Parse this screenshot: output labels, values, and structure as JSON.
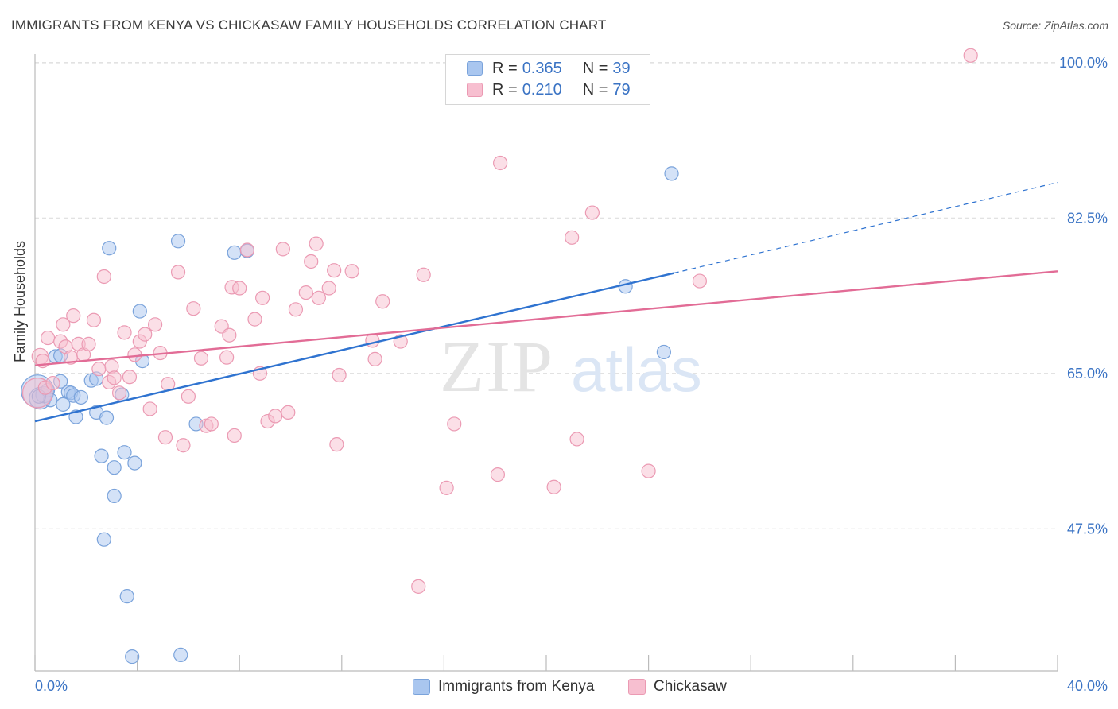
{
  "title": "IMMIGRANTS FROM KENYA VS CHICKASAW FAMILY HOUSEHOLDS CORRELATION CHART",
  "source": "Source: ZipAtlas.com",
  "watermark": {
    "zip": "ZIP",
    "atlas": "atlas"
  },
  "legend": {
    "kenya": {
      "r_label": "R = ",
      "r_value": "0.365",
      "n_label": "N = ",
      "n_value": "39"
    },
    "chickasaw": {
      "r_label": "R = ",
      "r_value": "0.210",
      "n_label": "N = ",
      "n_value": "79"
    }
  },
  "bottom_legend": {
    "kenya": "Immigrants from Kenya",
    "chickasaw": "Chickasaw"
  },
  "colors": {
    "kenya_fill": "#a9c6ef",
    "kenya_stroke": "#7aa3db",
    "kenya_line": "#2f73d0",
    "chickasaw_fill": "#f7bfd0",
    "chickasaw_stroke": "#eb9ab3",
    "chickasaw_line": "#e26c96",
    "axis_text": "#3a73c4",
    "grid": "#d9d9d9"
  },
  "chart_data": {
    "type": "scatter",
    "title": "IMMIGRANTS FROM KENYA VS CHICKASAW FAMILY HOUSEHOLDS CORRELATION CHART",
    "xlabel": "",
    "ylabel": "Family Households",
    "xlim": [
      0,
      40
    ],
    "ylim": [
      31.5,
      101.5
    ],
    "x_tick_labels": [
      "0.0%",
      "40.0%"
    ],
    "y_ticks": [
      47.5,
      65.0,
      82.5,
      100.0
    ],
    "y_tick_labels": [
      "47.5%",
      "65.0%",
      "82.5%",
      "100.0%"
    ],
    "grid": true,
    "series": [
      {
        "name": "Immigrants from Kenya",
        "r": 0.365,
        "n": 39,
        "trend": {
          "x0": 0,
          "y0": 59.6,
          "x1": 25.0,
          "y1": 76.3,
          "dashed_to_x": 40.0,
          "dashed_to_y": 86.5
        },
        "points": [
          [
            0.1,
            63.0,
            2.4
          ],
          [
            0.2,
            62.2,
            1.6
          ],
          [
            0.35,
            62.6,
            1.2
          ],
          [
            0.5,
            63.1,
            1.0
          ],
          [
            0.6,
            62.0,
            1.0
          ],
          [
            0.8,
            66.9,
            1.0
          ],
          [
            1.0,
            67.0,
            1.0
          ],
          [
            1.0,
            64.1,
            1.0
          ],
          [
            1.1,
            61.5,
            1.0
          ],
          [
            1.3,
            62.9,
            1.0
          ],
          [
            1.4,
            62.8,
            1.0
          ],
          [
            1.5,
            62.5,
            1.0
          ],
          [
            1.6,
            60.1,
            1.0
          ],
          [
            1.8,
            62.3,
            1.0
          ],
          [
            2.2,
            64.2,
            1.0
          ],
          [
            2.4,
            64.4,
            1.0
          ],
          [
            2.4,
            60.6,
            1.0
          ],
          [
            2.6,
            55.7,
            1.0
          ],
          [
            2.8,
            60.0,
            1.0
          ],
          [
            2.9,
            79.1,
            1.0
          ],
          [
            3.1,
            51.2,
            1.0
          ],
          [
            3.1,
            54.4,
            1.0
          ],
          [
            3.4,
            62.6,
            1.0
          ],
          [
            3.5,
            56.1,
            1.0
          ],
          [
            3.6,
            39.9,
            1.0
          ],
          [
            3.8,
            33.1,
            1.0
          ],
          [
            3.9,
            54.9,
            1.0
          ],
          [
            4.1,
            72.0,
            1.0
          ],
          [
            4.2,
            66.4,
            1.0
          ],
          [
            2.7,
            46.3,
            1.0
          ],
          [
            5.6,
            79.9,
            1.0
          ],
          [
            6.3,
            59.3,
            1.0
          ],
          [
            7.8,
            78.6,
            1.0
          ],
          [
            8.3,
            78.8,
            1.0
          ],
          [
            5.7,
            33.3,
            1.0
          ],
          [
            23.1,
            74.8,
            1.0
          ],
          [
            24.6,
            67.4,
            1.0
          ],
          [
            24.9,
            87.5,
            1.0
          ],
          [
            0.15,
            62.4,
            1.0
          ]
        ]
      },
      {
        "name": "Chickasaw",
        "r": 0.21,
        "n": 79,
        "trend": {
          "x0": 0,
          "y0": 65.9,
          "x1": 40.0,
          "y1": 76.5
        },
        "points": [
          [
            0.1,
            62.8,
            2.2
          ],
          [
            0.2,
            66.9,
            1.2
          ],
          [
            0.4,
            63.4,
            1.0
          ],
          [
            0.5,
            69.0,
            1.0
          ],
          [
            0.7,
            63.9,
            1.0
          ],
          [
            1.0,
            68.6,
            1.0
          ],
          [
            1.2,
            68.0,
            1.0
          ],
          [
            1.4,
            66.8,
            1.0
          ],
          [
            1.5,
            71.5,
            1.0
          ],
          [
            1.7,
            68.3,
            1.0
          ],
          [
            1.9,
            67.1,
            1.0
          ],
          [
            2.1,
            68.3,
            1.0
          ],
          [
            2.3,
            71.0,
            1.0
          ],
          [
            2.5,
            65.5,
            1.0
          ],
          [
            2.7,
            75.9,
            1.0
          ],
          [
            2.9,
            64.0,
            1.0
          ],
          [
            3.0,
            65.8,
            1.0
          ],
          [
            3.1,
            64.5,
            1.0
          ],
          [
            3.3,
            62.8,
            1.0
          ],
          [
            3.5,
            69.6,
            1.0
          ],
          [
            3.7,
            64.6,
            1.0
          ],
          [
            3.9,
            67.1,
            1.0
          ],
          [
            4.1,
            68.6,
            1.0
          ],
          [
            4.3,
            69.4,
            1.0
          ],
          [
            4.5,
            61.0,
            1.0
          ],
          [
            4.7,
            70.5,
            1.0
          ],
          [
            4.9,
            67.3,
            1.0
          ],
          [
            5.1,
            57.8,
            1.0
          ],
          [
            5.2,
            63.8,
            1.0
          ],
          [
            5.6,
            76.4,
            1.0
          ],
          [
            5.8,
            56.9,
            1.0
          ],
          [
            6.0,
            62.4,
            1.0
          ],
          [
            6.2,
            72.3,
            1.0
          ],
          [
            6.5,
            66.7,
            1.0
          ],
          [
            6.7,
            59.1,
            1.0
          ],
          [
            6.9,
            59.3,
            1.0
          ],
          [
            7.3,
            70.3,
            1.0
          ],
          [
            7.5,
            66.8,
            1.0
          ],
          [
            7.6,
            69.3,
            1.0
          ],
          [
            7.8,
            58.0,
            1.0
          ],
          [
            7.7,
            74.7,
            1.0
          ],
          [
            8.0,
            74.6,
            1.0
          ],
          [
            8.3,
            78.9,
            1.0
          ],
          [
            8.6,
            71.1,
            1.0
          ],
          [
            8.8,
            65.0,
            1.0
          ],
          [
            8.9,
            73.5,
            1.0
          ],
          [
            9.1,
            59.6,
            1.0
          ],
          [
            9.4,
            60.2,
            1.0
          ],
          [
            9.7,
            79.0,
            1.0
          ],
          [
            9.9,
            60.6,
            1.0
          ],
          [
            10.2,
            72.2,
            1.0
          ],
          [
            10.6,
            74.1,
            1.0
          ],
          [
            10.8,
            77.6,
            1.0
          ],
          [
            11.0,
            79.6,
            1.0
          ],
          [
            11.1,
            73.5,
            1.0
          ],
          [
            11.5,
            74.6,
            1.0
          ],
          [
            11.7,
            76.6,
            1.0
          ],
          [
            11.8,
            57.0,
            1.0
          ],
          [
            11.9,
            64.8,
            1.0
          ],
          [
            12.4,
            76.5,
            1.0
          ],
          [
            13.2,
            68.7,
            1.0
          ],
          [
            13.3,
            66.6,
            1.0
          ],
          [
            13.6,
            73.1,
            1.0
          ],
          [
            14.3,
            68.6,
            1.0
          ],
          [
            15.0,
            41.0,
            1.0
          ],
          [
            15.2,
            76.1,
            1.0
          ],
          [
            16.1,
            52.1,
            1.0
          ],
          [
            16.4,
            59.3,
            1.0
          ],
          [
            18.1,
            53.6,
            1.0
          ],
          [
            18.2,
            88.7,
            1.0
          ],
          [
            20.3,
            52.2,
            1.0
          ],
          [
            21.0,
            80.3,
            1.0
          ],
          [
            21.2,
            57.6,
            1.0
          ],
          [
            21.8,
            83.1,
            1.0
          ],
          [
            24.0,
            54.0,
            1.0
          ],
          [
            26.0,
            75.4,
            1.0
          ],
          [
            36.6,
            100.8,
            1.0
          ],
          [
            1.1,
            70.5,
            1.0
          ],
          [
            0.3,
            66.4,
            1.0
          ]
        ]
      }
    ]
  }
}
